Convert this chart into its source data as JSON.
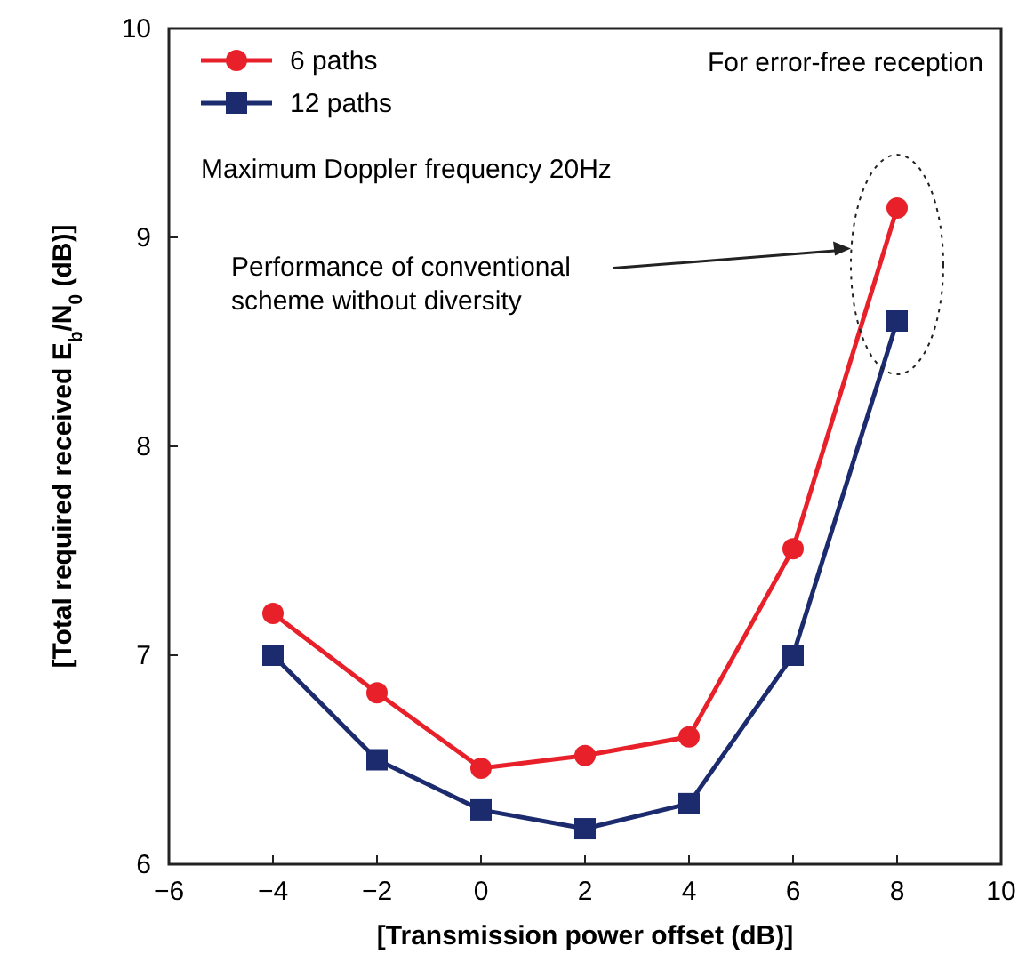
{
  "chart_data": {
    "type": "line",
    "xlabel": "[Transmission power offset (dB)]",
    "ylabel": "[Total required received E$_{b}$/N$_{0}$ (dB)]",
    "x": [
      -4,
      -2,
      0,
      2,
      4,
      6,
      8
    ],
    "series": [
      {
        "name": "6 paths",
        "color": "#e8202a",
        "values": [
          7.2,
          6.82,
          6.46,
          6.52,
          6.61,
          7.51,
          9.14
        ],
        "marker": "circle"
      },
      {
        "name": "12 paths",
        "color": "#1c2a6e",
        "values": [
          7.0,
          6.5,
          6.26,
          6.17,
          6.29,
          7.0,
          8.6
        ],
        "marker": "square"
      }
    ],
    "xlim": [
      -6,
      10
    ],
    "xticks": [
      -6,
      -4,
      -2,
      0,
      2,
      4,
      6,
      8,
      10
    ],
    "ylim": [
      6,
      10
    ],
    "yticks": [
      6,
      7,
      8,
      9,
      10
    ],
    "legend": "top left",
    "grid": false,
    "line_style": "solid",
    "annotations": [
      "For error-free reception",
      "Maximum Doppler frequency 20Hz",
      "Performance of conventional scheme without diversity"
    ]
  }
}
